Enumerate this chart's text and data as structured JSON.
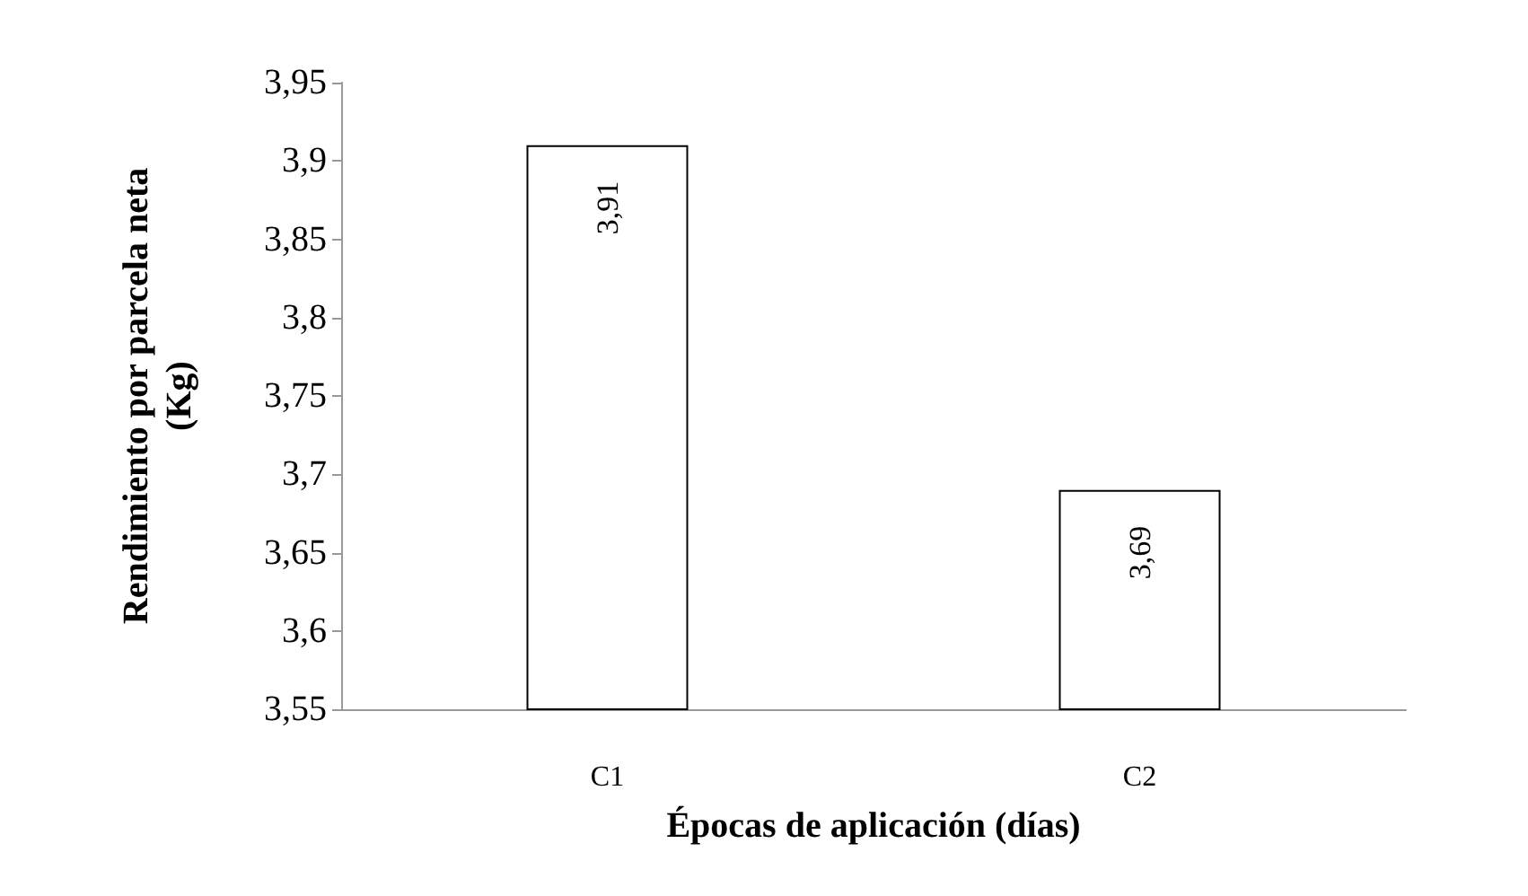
{
  "chart_data": {
    "type": "bar",
    "xlabel": "Épocas de aplicación (días)",
    "ylabel": "Rendimiento por parcela neta\n(Kg)",
    "categories": [
      "C1",
      "C2"
    ],
    "values": [
      3.91,
      3.69
    ],
    "value_labels": [
      "3,91",
      "3,69"
    ],
    "color": "#ffffff",
    "ylim": [
      3.55,
      3.95
    ],
    "yticks": [
      {
        "value": 3.55,
        "label": "3,55"
      },
      {
        "value": 3.6,
        "label": "3,6"
      },
      {
        "value": 3.65,
        "label": "3,65"
      },
      {
        "value": 3.7,
        "label": "3,7"
      },
      {
        "value": 3.75,
        "label": "3,75"
      },
      {
        "value": 3.8,
        "label": "3,8"
      },
      {
        "value": 3.85,
        "label": "3,85"
      },
      {
        "value": 3.9,
        "label": "3,9"
      },
      {
        "value": 3.95,
        "label": "3,95"
      }
    ],
    "grid": false
  }
}
